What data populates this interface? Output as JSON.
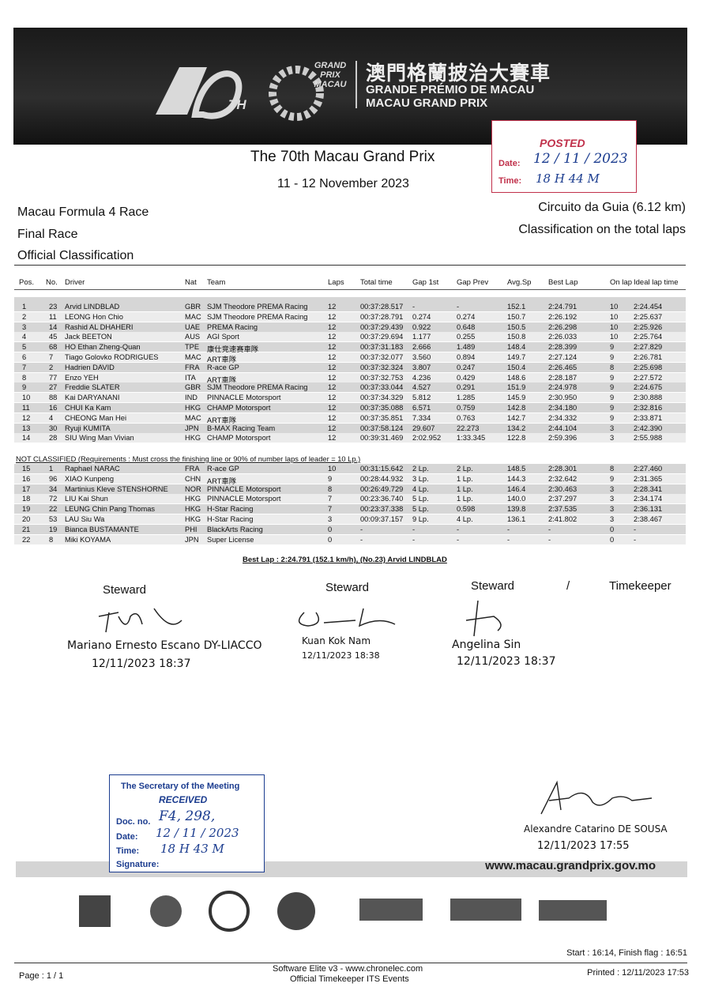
{
  "header": {
    "logo_number": "70",
    "logo_suffix": "TH",
    "gp_logo": "GRAND PRIX MACAU",
    "title_zh": "澳門格蘭披治大賽車",
    "title_pt": "GRANDE PRÉMIO DE MACAU",
    "title_en": "MACAU GRAND PRIX"
  },
  "posted_stamp": {
    "label": "POSTED",
    "date_label": "Date:",
    "date": "12 / 11 / 2023",
    "time_label": "Time:",
    "time": "18 H 44 M"
  },
  "event": {
    "title": "The 70th Macau Grand Prix",
    "dates": "11 - 12 November 2023",
    "race": "Macau Formula 4 Race",
    "session": "Final Race",
    "document": "Official Classification",
    "circuit": "Circuito da Guia (6.12 km)",
    "basis": "Classification on the total laps"
  },
  "table": {
    "columns": [
      "Pos.",
      "No.",
      "Driver",
      "Nat",
      "Team",
      "Laps",
      "Total time",
      "Gap 1st",
      "Gap Prev",
      "Avg.Sp",
      "Best Lap",
      "On lap",
      "Ideal lap time"
    ],
    "rows": [
      [
        "1",
        "23",
        "Arvid LINDBLAD",
        "GBR",
        "SJM Theodore PREMA Racing",
        "12",
        "00:37:28.517",
        "-",
        "-",
        "152.1",
        "2:24.791",
        "10",
        "2:24.454"
      ],
      [
        "2",
        "11",
        "LEONG Hon Chio",
        "MAC",
        "SJM Theodore PREMA Racing",
        "12",
        "00:37:28.791",
        "0.274",
        "0.274",
        "150.7",
        "2:26.192",
        "10",
        "2:25.637"
      ],
      [
        "3",
        "14",
        "Rashid AL DHAHERI",
        "UAE",
        "PREMA Racing",
        "12",
        "00:37:29.439",
        "0.922",
        "0.648",
        "150.5",
        "2:26.298",
        "10",
        "2:25.926"
      ],
      [
        "4",
        "45",
        "Jack BEETON",
        "AUS",
        "AGI Sport",
        "12",
        "00:37:29.694",
        "1.177",
        "0.255",
        "150.8",
        "2:26.033",
        "10",
        "2:25.764"
      ],
      [
        "5",
        "68",
        "HO Ethan Zheng-Quan",
        "TPE",
        "康仕竞速赛車隊",
        "12",
        "00:37:31.183",
        "2.666",
        "1.489",
        "148.4",
        "2:28.399",
        "9",
        "2:27.829"
      ],
      [
        "6",
        "7",
        "Tiago Golovko RODRIGUES",
        "MAC",
        "ART車隊",
        "12",
        "00:37:32.077",
        "3.560",
        "0.894",
        "149.7",
        "2:27.124",
        "9",
        "2:26.781"
      ],
      [
        "7",
        "2",
        "Hadrien DAVID",
        "FRA",
        "R-ace GP",
        "12",
        "00:37:32.324",
        "3.807",
        "0.247",
        "150.4",
        "2:26.465",
        "8",
        "2:25.698"
      ],
      [
        "8",
        "77",
        "Enzo YEH",
        "ITA",
        "ART車隊",
        "12",
        "00:37:32.753",
        "4.236",
        "0.429",
        "148.6",
        "2:28.187",
        "9",
        "2:27.572"
      ],
      [
        "9",
        "27",
        "Freddie SLATER",
        "GBR",
        "SJM Theodore PREMA Racing",
        "12",
        "00:37:33.044",
        "4.527",
        "0.291",
        "151.9",
        "2:24.978",
        "9",
        "2:24.675"
      ],
      [
        "10",
        "88",
        "Kai DARYANANI",
        "IND",
        "PINNACLE Motorsport",
        "12",
        "00:37:34.329",
        "5.812",
        "1.285",
        "145.9",
        "2:30.950",
        "9",
        "2:30.888"
      ],
      [
        "11",
        "16",
        "CHUI Ka Kam",
        "HKG",
        "CHAMP Motorsport",
        "12",
        "00:37:35.088",
        "6.571",
        "0.759",
        "142.8",
        "2:34.180",
        "9",
        "2:32.816"
      ],
      [
        "12",
        "4",
        "CHEONG Man Hei",
        "MAC",
        "ART車隊",
        "12",
        "00:37:35.851",
        "7.334",
        "0.763",
        "142.7",
        "2:34.332",
        "9",
        "2:33.871"
      ],
      [
        "13",
        "30",
        "Ryuji KUMITA",
        "JPN",
        "B-MAX Racing Team",
        "12",
        "00:37:58.124",
        "29.607",
        "22.273",
        "134.2",
        "2:44.104",
        "3",
        "2:42.390"
      ],
      [
        "14",
        "28",
        "SIU Wing Man Vivian",
        "HKG",
        "CHAMP Motorsport",
        "12",
        "00:39:31.469",
        "2:02.952",
        "1:33.345",
        "122.8",
        "2:59.396",
        "3",
        "2:55.988"
      ]
    ],
    "not_classified_label": "NOT CLASSIFIED (Requirements : Must cross the finishing line or 90% of number laps of leader = 10 Lp.)",
    "not_classified_rows": [
      [
        "15",
        "1",
        "Raphael NARAC",
        "FRA",
        "R-ace GP",
        "10",
        "00:31:15.642",
        "2 Lp.",
        "2 Lp.",
        "148.5",
        "2:28.301",
        "8",
        "2:27.460"
      ],
      [
        "16",
        "96",
        "XIAO Kunpeng",
        "CHN",
        "ART車隊",
        "9",
        "00:28:44.932",
        "3 Lp.",
        "1 Lp.",
        "144.3",
        "2:32.642",
        "9",
        "2:31.365"
      ],
      [
        "17",
        "34",
        "Martinius Kleve STENSHORNE",
        "NOR",
        "PINNACLE Motorsport",
        "8",
        "00:26:49.729",
        "4 Lp.",
        "1 Lp.",
        "146.4",
        "2:30.463",
        "3",
        "2:28.341"
      ],
      [
        "18",
        "72",
        "LIU Kai Shun",
        "HKG",
        "PINNACLE Motorsport",
        "7",
        "00:23:36.740",
        "5 Lp.",
        "1 Lp.",
        "140.0",
        "2:37.297",
        "3",
        "2:34.174"
      ],
      [
        "19",
        "22",
        "LEUNG Chin Pang Thomas",
        "HKG",
        "H-Star Racing",
        "7",
        "00:23:37.338",
        "5 Lp.",
        "0.598",
        "139.8",
        "2:37.535",
        "3",
        "2:36.131"
      ],
      [
        "20",
        "53",
        "LAU Siu Wa",
        "HKG",
        "H-Star Racing",
        "3",
        "00:09:37.157",
        "9 Lp.",
        "4 Lp.",
        "136.1",
        "2:41.802",
        "3",
        "2:38.467"
      ],
      [
        "21",
        "19",
        "Bianca BUSTAMANTE",
        "PHI",
        "BlackArts Racing",
        "0",
        "-",
        "-",
        "-",
        "-",
        "-",
        "0",
        "-"
      ],
      [
        "22",
        "8",
        "Miki KOYAMA",
        "JPN",
        "Super License",
        "0",
        "-",
        "-",
        "-",
        "-",
        "-",
        "0",
        "-"
      ]
    ],
    "best_lap": "Best Lap : 2:24.791 (152.1 km/h), (No.23) Arvid LINDBLAD"
  },
  "officials": {
    "role1": "Steward",
    "role2": "Steward",
    "role3": "Steward",
    "separator": "/",
    "role4": "Timekeeper",
    "name1": "Mariano Ernesto Escano DY-LIACCO",
    "time1": "12/11/2023 18:37",
    "name2": "Kuan Kok Nam",
    "time2": "12/11/2023 18:38",
    "name3": "Angelina Sin",
    "time3": "12/11/2023 18:37"
  },
  "received_stamp": {
    "title": "The Secretary of the Meeting",
    "label": "RECEIVED",
    "doc_label": "Doc. no.",
    "doc_no": "F4, 298,",
    "date_label": "Date:",
    "date": "12 / 11 / 2023",
    "time_label": "Time:",
    "time": "18 H 43 M",
    "signature_label": "Signature:"
  },
  "director": {
    "name": "Alexandre Catarino DE SOUSA",
    "time": "12/11/2023 17:55"
  },
  "website": "www.macau.grandprix.gov.mo",
  "footer": {
    "start_finish": "Start : 16:14, Finish flag : 16:51",
    "page": "Page : 1 / 1",
    "software": "Software Elite v3 - www.chronelec.com",
    "timekeeper": "Official Timekeeper ITS Events",
    "printed": "Printed : 12/11/2023 17:53"
  }
}
